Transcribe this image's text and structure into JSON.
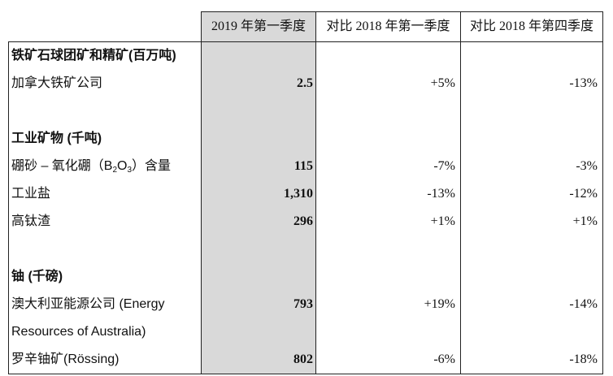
{
  "header": {
    "col_value": "2019 年第一季度",
    "col_yoy": "对比 2018 年第一季度",
    "col_qoq": "对比 2018 年第四季度"
  },
  "sections": {
    "iron": {
      "title": "铁矿石球团矿和精矿(百万吨)",
      "rows": [
        {
          "label": "加拿大铁矿公司",
          "value": "2.5",
          "yoy": "+5%",
          "qoq": "-13%"
        }
      ]
    },
    "industrial": {
      "title": "工业矿物 (千吨)",
      "rows": [
        {
          "label_pre": "硼砂 – 氧化硼（B",
          "label_sub1": "2",
          "label_mid": "O",
          "label_sub2": "3",
          "label_post": "）含量",
          "value": "115",
          "yoy": "-7%",
          "qoq": "-3%"
        },
        {
          "label": "工业盐",
          "value": "1,310",
          "yoy": "-13%",
          "qoq": "-12%"
        },
        {
          "label": "高钛渣",
          "value": "296",
          "yoy": "+1%",
          "qoq": "+1%"
        }
      ]
    },
    "uranium": {
      "title": "铀 (千磅)",
      "rows": [
        {
          "label_line1": "澳大利亚能源公司 (Energy",
          "label_line2": "Resources of Australia)",
          "value": "793",
          "yoy": "+19%",
          "qoq": "-14%"
        },
        {
          "label": "罗辛铀矿(Rössing)",
          "value": "802",
          "yoy": "-6%",
          "qoq": "-18%"
        }
      ]
    }
  }
}
